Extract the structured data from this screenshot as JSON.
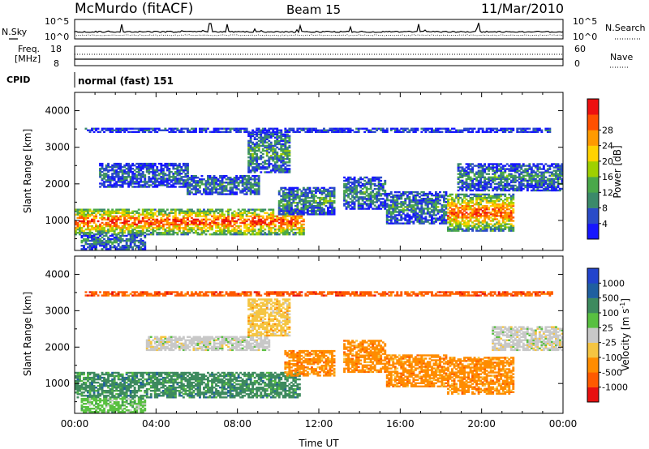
{
  "header": {
    "station": "McMurdo (fitACF)",
    "beam": "Beam 15",
    "date": "11/Mar/2010"
  },
  "strip": {
    "nsky_label": "N.Sky",
    "nsearch_label": "N.Search",
    "freq_label_1": "Freq.",
    "freq_label_2": "[MHz]",
    "nave_label": "Nave",
    "cpid_label": "CPID",
    "cpid_text": "normal (fast) 151",
    "left_ticks_noise": [
      "10^5",
      "10^0"
    ],
    "right_ticks_noise": [
      "10^5",
      "10^0"
    ],
    "left_ticks_freq": [
      "18",
      "8"
    ],
    "right_ticks_nave": [
      "60",
      "0"
    ]
  },
  "chart_data": [
    {
      "type": "heatmap",
      "panel": "power",
      "ylabel": "Slant Range [km]",
      "ylim": [
        180,
        4500
      ],
      "yticks": [
        1000,
        2000,
        3000,
        4000
      ],
      "xlim": [
        0,
        24
      ],
      "colorbar_label": "Power [dB]",
      "colorbar_ticks": [
        "4",
        "8",
        "12",
        "16",
        "20",
        "24",
        "28"
      ],
      "colors": [
        "#1616ff",
        "#2a4bc8",
        "#3b8a6a",
        "#4aa84a",
        "#9fd000",
        "#ffd200",
        "#ff9a00",
        "#ff5000",
        "#ee1010"
      ],
      "bands": [
        {
          "t0": 0.0,
          "t1": 11.2,
          "r0": 600,
          "r1": 1300,
          "v": 0.75
        },
        {
          "t0": 0.3,
          "t1": 3.5,
          "r0": 200,
          "r1": 600,
          "v": 0.25
        },
        {
          "t0": 1.2,
          "t1": 5.5,
          "r0": 1900,
          "r1": 2550,
          "v": 0.2
        },
        {
          "t0": 5.5,
          "t1": 9.0,
          "r0": 1700,
          "r1": 2200,
          "v": 0.25
        },
        {
          "t0": 8.5,
          "t1": 10.5,
          "r0": 2300,
          "r1": 3400,
          "v": 0.3
        },
        {
          "t0": 10.0,
          "t1": 12.7,
          "r0": 1150,
          "r1": 1900,
          "v": 0.3
        },
        {
          "t0": 13.2,
          "t1": 15.2,
          "r0": 1300,
          "r1": 2200,
          "v": 0.25
        },
        {
          "t0": 15.3,
          "t1": 18.3,
          "r0": 900,
          "r1": 1800,
          "v": 0.25
        },
        {
          "t0": 18.3,
          "t1": 21.6,
          "r0": 700,
          "r1": 1700,
          "v": 0.72
        },
        {
          "t0": 18.8,
          "t1": 24.0,
          "r0": 1800,
          "r1": 2550,
          "v": 0.25
        },
        {
          "t0": 0.5,
          "t1": 23.5,
          "r0": 3400,
          "r1": 3520,
          "v": 0.12
        }
      ]
    },
    {
      "type": "heatmap",
      "panel": "velocity",
      "ylabel": "Slant Range [km]",
      "xlabel": "Time UT",
      "ylim": [
        180,
        4500
      ],
      "yticks": [
        1000,
        2000,
        3000,
        4000
      ],
      "xlim": [
        0,
        24
      ],
      "xticks": [
        "00:00",
        "04:00",
        "08:00",
        "12:00",
        "16:00",
        "20:00",
        "00:00"
      ],
      "colorbar_label": "Velocity [m s^-1]",
      "colorbar_ticks": [
        "1000",
        "500",
        "100",
        "25",
        "-25",
        "-100",
        "-500",
        "-1000"
      ],
      "colors": [
        "#2244cc",
        "#1f5fa0",
        "#3d8a5e",
        "#58c040",
        "#c8c8c8",
        "#f5c542",
        "#ff8c00",
        "#ff5a00",
        "#e81010"
      ],
      "bands": [
        {
          "t0": 0.0,
          "t1": 11.0,
          "r0": 600,
          "r1": 1300,
          "c": 2
        },
        {
          "t0": 0.3,
          "t1": 3.5,
          "r0": 200,
          "r1": 600,
          "c": 3
        },
        {
          "t0": 3.5,
          "t1": 9.5,
          "r0": 1900,
          "r1": 2300,
          "c": 4
        },
        {
          "t0": 8.5,
          "t1": 10.5,
          "r0": 2300,
          "r1": 3300,
          "c": 5
        },
        {
          "t0": 10.3,
          "t1": 12.7,
          "r0": 1200,
          "r1": 1900,
          "c": 6
        },
        {
          "t0": 13.2,
          "t1": 15.2,
          "r0": 1300,
          "r1": 2200,
          "c": 6
        },
        {
          "t0": 15.3,
          "t1": 18.3,
          "r0": 900,
          "r1": 1800,
          "c": 6
        },
        {
          "t0": 18.3,
          "t1": 21.6,
          "r0": 700,
          "r1": 1700,
          "c": 6
        },
        {
          "t0": 20.5,
          "t1": 24.0,
          "r0": 1900,
          "r1": 2550,
          "c": 4
        },
        {
          "t0": 0.5,
          "t1": 23.5,
          "r0": 3400,
          "r1": 3520,
          "c": 7
        }
      ]
    }
  ]
}
